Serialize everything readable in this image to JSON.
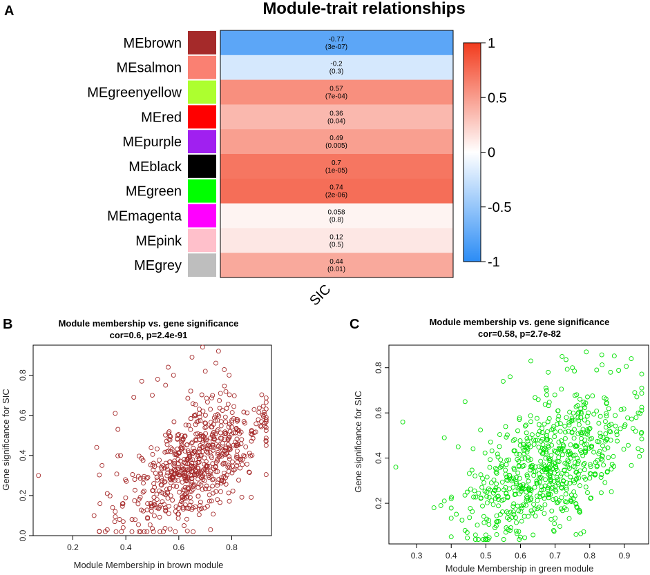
{
  "panels": {
    "a": "A",
    "b": "B",
    "c": "C"
  },
  "chart_data": [
    {
      "type": "heatmap",
      "title": "Module-trait relationships",
      "trait": "SIC",
      "rows": [
        {
          "module": "MEbrown",
          "color": "#a52a2a",
          "cor": -0.77,
          "cor_label": "-0.77",
          "p_label": "(3e-07)"
        },
        {
          "module": "MEsalmon",
          "color": "#fa8072",
          "cor": -0.2,
          "cor_label": "-0.2",
          "p_label": "(0.3)"
        },
        {
          "module": "MEgreenyellow",
          "color": "#adff2f",
          "cor": 0.57,
          "cor_label": "0.57",
          "p_label": "(7e-04)"
        },
        {
          "module": "MEred",
          "color": "#ff0000",
          "cor": 0.36,
          "cor_label": "0.36",
          "p_label": "(0.04)"
        },
        {
          "module": "MEpurple",
          "color": "#a020f0",
          "cor": 0.49,
          "cor_label": "0.49",
          "p_label": "(0.005)"
        },
        {
          "module": "MEblack",
          "color": "#000000",
          "cor": 0.7,
          "cor_label": "0.7",
          "p_label": "(1e-05)"
        },
        {
          "module": "MEgreen",
          "color": "#00ff00",
          "cor": 0.74,
          "cor_label": "0.74",
          "p_label": "(2e-06)"
        },
        {
          "module": "MEmagenta",
          "color": "#ff00ff",
          "cor": 0.058,
          "cor_label": "0.058",
          "p_label": "(0.8)"
        },
        {
          "module": "MEpink",
          "color": "#ffc0cb",
          "cor": 0.12,
          "cor_label": "0.12",
          "p_label": "(0.5)"
        },
        {
          "module": "MEgrey",
          "color": "#bebebe",
          "cor": 0.44,
          "cor_label": "0.44",
          "p_label": "(0.01)"
        }
      ],
      "color_scale": {
        "low": "#2b8cf5",
        "mid": "#ffffff",
        "high": "#f23b1d",
        "range": [
          -1,
          1
        ],
        "ticks": [
          1,
          0.5,
          0,
          -0.5,
          -1
        ],
        "tick_labels": [
          "1",
          "0.5",
          "0",
          "-0.5",
          "-1"
        ]
      }
    },
    {
      "type": "scatter",
      "title": "Module membership vs. gene significance",
      "subtitle": "cor=0.6, p=2.4e-91",
      "xlabel": "Module Membership in brown module",
      "ylabel": "Gene significance for SIC",
      "xlim": [
        0.05,
        0.95
      ],
      "ylim": [
        0.0,
        0.95
      ],
      "xticks": [
        0.2,
        0.4,
        0.6,
        0.8
      ],
      "xtick_labels": [
        "0.2",
        "0.4",
        "0.6",
        "0.8"
      ],
      "yticks": [
        0.0,
        0.2,
        0.4,
        0.6,
        0.8
      ],
      "ytick_labels": [
        "0.0",
        "0.2",
        "0.4",
        "0.6",
        "0.8"
      ],
      "point_color": "#a52a2a",
      "n_points": 700,
      "cor": 0.6,
      "points": [
        [
          0.07,
          0.3
        ],
        [
          0.28,
          0.1
        ],
        [
          0.29,
          0.44
        ],
        [
          0.31,
          0.35
        ],
        [
          0.33,
          0.21
        ],
        [
          0.33,
          0.03
        ],
        [
          0.35,
          0.14
        ],
        [
          0.36,
          0.61
        ],
        [
          0.36,
          0.12
        ],
        [
          0.37,
          0.53
        ],
        [
          0.38,
          0.4
        ],
        [
          0.39,
          0.07
        ],
        [
          0.39,
          0.04
        ],
        [
          0.43,
          0.69
        ],
        [
          0.46,
          0.77
        ],
        [
          0.48,
          0.02
        ],
        [
          0.5,
          0.7
        ],
        [
          0.52,
          0.78
        ],
        [
          0.55,
          0.75
        ],
        [
          0.58,
          0.8
        ],
        [
          0.62,
          0.05
        ],
        [
          0.65,
          0.89
        ],
        [
          0.68,
          0.15
        ],
        [
          0.69,
          0.94
        ],
        [
          0.72,
          0.03
        ],
        [
          0.75,
          0.92
        ],
        [
          0.79,
          0.8
        ],
        [
          0.7,
          0.82
        ],
        [
          0.74,
          0.86
        ],
        [
          0.56,
          0.84
        ]
      ]
    },
    {
      "type": "scatter",
      "title": "Module membership vs. gene significance",
      "subtitle": "cor=0.58, p=2.7e-82",
      "xlabel": "Module Membership in green module",
      "ylabel": "Gene significance for SIC",
      "xlim": [
        0.22,
        0.97
      ],
      "ylim": [
        0.02,
        0.9
      ],
      "xticks": [
        0.3,
        0.4,
        0.5,
        0.6,
        0.7,
        0.8,
        0.9
      ],
      "xtick_labels": [
        "0.3",
        "0.4",
        "0.5",
        "0.6",
        "0.7",
        "0.8",
        "0.9"
      ],
      "yticks": [
        0.2,
        0.4,
        0.6,
        0.8
      ],
      "ytick_labels": [
        "0.2",
        "0.4",
        "0.6",
        "0.8"
      ],
      "point_color": "#00e000",
      "n_points": 700,
      "cor": 0.58,
      "points": [
        [
          0.24,
          0.36
        ],
        [
          0.26,
          0.56
        ],
        [
          0.35,
          0.18
        ],
        [
          0.37,
          0.19
        ],
        [
          0.38,
          0.49
        ],
        [
          0.38,
          0.21
        ],
        [
          0.42,
          0.45
        ],
        [
          0.44,
          0.65
        ],
        [
          0.44,
          0.08
        ],
        [
          0.47,
          0.06
        ],
        [
          0.47,
          0.04
        ],
        [
          0.5,
          0.06
        ],
        [
          0.53,
          0.1
        ],
        [
          0.55,
          0.74
        ],
        [
          0.57,
          0.76
        ],
        [
          0.6,
          0.05
        ],
        [
          0.63,
          0.83
        ],
        [
          0.68,
          0.78
        ],
        [
          0.72,
          0.85
        ],
        [
          0.75,
          0.8
        ],
        [
          0.79,
          0.87
        ],
        [
          0.82,
          0.79
        ],
        [
          0.86,
          0.78
        ],
        [
          0.92,
          0.84
        ],
        [
          0.93,
          0.69
        ],
        [
          0.95,
          0.71
        ],
        [
          0.9,
          0.54
        ],
        [
          0.94,
          0.6
        ]
      ]
    }
  ]
}
